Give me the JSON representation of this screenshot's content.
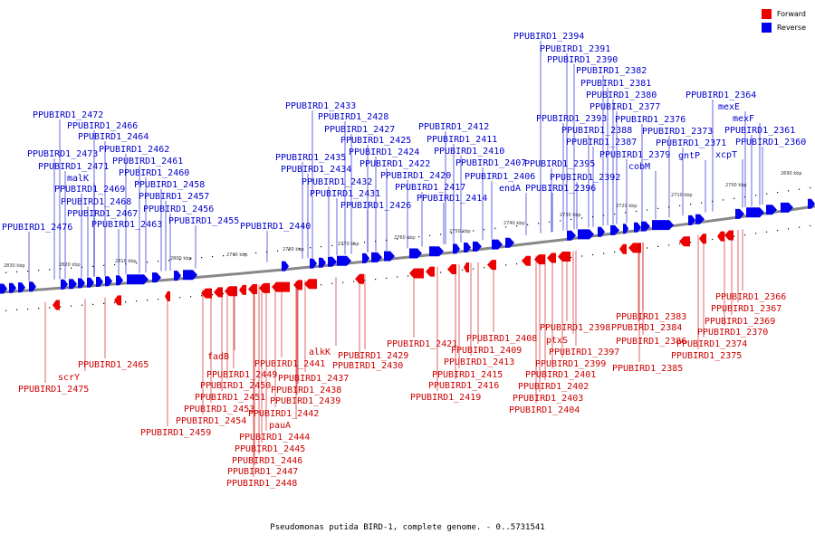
{
  "legend": {
    "forward_label": "Forward",
    "forward_color": "#ee0000",
    "reverse_label": "Reverse",
    "reverse_color": "#0000ee"
  },
  "caption": "Pseudomonas putida BIRD-1, complete genome. - 0..5731541",
  "scale": [
    {
      "label": "2830 kbp"
    },
    {
      "label": "2820 kbp"
    },
    {
      "label": "2810 kbp"
    },
    {
      "label": "2800 kbp"
    },
    {
      "label": "2790 kbp"
    },
    {
      "label": "2780 kbp"
    },
    {
      "label": "2770 kbp"
    },
    {
      "label": "2760 kbp"
    },
    {
      "label": "2750 kbp"
    },
    {
      "label": "2740 kbp"
    },
    {
      "label": "2730 kbp"
    },
    {
      "label": "2720 kbp"
    },
    {
      "label": "2710 kbp"
    },
    {
      "label": "2700 kbp"
    },
    {
      "label": "2690 kbp"
    }
  ],
  "reverse_labels": [
    "PPUBIRD1_2476",
    "PPUBIRD1_2473",
    "PPUBIRD1_2471",
    "malK",
    "PPUBIRD1_2472",
    "PPUBIRD1_2469",
    "PPUBIRD1_2468",
    "PPUBIRD1_2467",
    "PPUBIRD1_2466",
    "PPUBIRD1_2464",
    "PPUBIRD1_2462",
    "PPUBIRD1_2461",
    "PPUBIRD1_2463",
    "PPUBIRD1_2460",
    "PPUBIRD1_2458",
    "PPUBIRD1_2457",
    "PPUBIRD1_2456",
    "PPUBIRD1_2455",
    "PPUBIRD1_2440",
    "PPUBIRD1_2435",
    "PPUBIRD1_2434",
    "PPUBIRD1_2433",
    "PPUBIRD1_2432",
    "PPUBIRD1_2431",
    "PPUBIRD1_2428",
    "PPUBIRD1_2427",
    "PPUBIRD1_2425",
    "PPUBIRD1_2426",
    "PPUBIRD1_2424",
    "PPUBIRD1_2422",
    "PPUBIRD1_2420",
    "PPUBIRD1_2417",
    "PPUBIRD1_2414",
    "PPUBIRD1_2412",
    "PPUBIRD1_2411",
    "PPUBIRD1_2410",
    "PPUBIRD1_2407",
    "PPUBIRD1_2406",
    "endA",
    "PPUBIRD1_2394",
    "PPUBIRD1_2391",
    "PPUBIRD1_2390",
    "PPUBIRD1_2396",
    "PPUBIRD1_2395",
    "PPUBIRD1_2393",
    "PPUBIRD1_2392",
    "PPUBIRD1_2388",
    "PPUBIRD1_2387",
    "PPUBIRD1_2382",
    "PPUBIRD1_2381",
    "PPUBIRD1_2380",
    "PPUBIRD1_2377",
    "PPUBIRD1_2379",
    "PPUBIRD1_2376",
    "cobM",
    "PPUBIRD1_2373",
    "PPUBIRD1_2371",
    "gntP",
    "PPUBIRD1_2364",
    "mexE",
    "mexF",
    "xcpT",
    "PPUBIRD1_2361",
    "PPUBIRD1_2360"
  ],
  "forward_labels": [
    "PPUBIRD1_2475",
    "scrY",
    "PPUBIRD1_2465",
    "PPUBIRD1_2459",
    "PPUBIRD1_2454",
    "PPUBIRD1_2453",
    "PPUBIRD1_2451",
    "PPUBIRD1_2450",
    "PPUBIRD1_2449",
    "fadB",
    "PPUBIRD1_2448",
    "PPUBIRD1_2447",
    "PPUBIRD1_2446",
    "PPUBIRD1_2445",
    "PPUBIRD1_2444",
    "pauA",
    "PPUBIRD1_2442",
    "PPUBIRD1_2439",
    "PPUBIRD1_2438",
    "PPUBIRD1_2437",
    "PPUBIRD1_2441",
    "alkK",
    "PPUBIRD1_2430",
    "PPUBIRD1_2429",
    "PPUBIRD1_2419",
    "PPUBIRD1_2416",
    "PPUBIRD1_2415",
    "PPUBIRD1_2413",
    "PPUBIRD1_2421",
    "PPUBIRD1_2409",
    "PPUBIRD1_2408",
    "PPUBIRD1_2404",
    "PPUBIRD1_2403",
    "PPUBIRD1_2402",
    "PPUBIRD1_2401",
    "PPUBIRD1_2399",
    "PPUBIRD1_2397",
    "ptxS",
    "PPUBIRD1_2398",
    "PPUBIRD1_2385",
    "PPUBIRD1_2386",
    "PPUBIRD1_2384",
    "PPUBIRD1_2383",
    "PPUBIRD1_2375",
    "PPUBIRD1_2374",
    "PPUBIRD1_2370",
    "PPUBIRD1_2369",
    "PPUBIRD1_2367",
    "PPUBIRD1_2366"
  ]
}
